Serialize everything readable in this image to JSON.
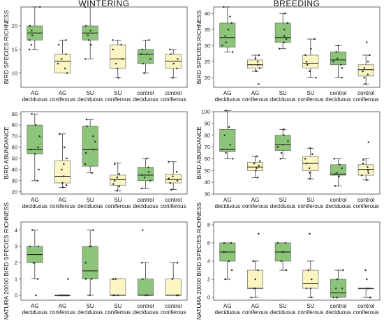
{
  "colors": {
    "green": "#8cc47a",
    "yellow": "#fbf5c1"
  },
  "chart_data": [
    {
      "type": "box",
      "title": "WINTERING",
      "ylabel": "BIRD SPECIES RICHNESS",
      "ylim": [
        7,
        24
      ],
      "yticks": [
        10,
        15,
        20
      ],
      "categories": [
        "AG deciduous",
        "AG coniferous",
        "SU deciduous",
        "SU coniferous",
        "control deciduous",
        "control coniferous"
      ],
      "boxes": [
        {
          "min": 15,
          "q1": 17,
          "median": 18.5,
          "q3": 20,
          "max": 24,
          "color": "green"
        },
        {
          "min": 10,
          "q1": 10,
          "median": 12.5,
          "q3": 14,
          "max": 17,
          "color": "yellow"
        },
        {
          "min": 13,
          "q1": 17,
          "median": 18.5,
          "q3": 20,
          "max": 24,
          "color": "green"
        },
        {
          "min": 9,
          "q1": 11,
          "median": 13,
          "q3": 16,
          "max": 17,
          "color": "yellow"
        },
        {
          "min": 10,
          "q1": 12,
          "median": 14,
          "q3": 15,
          "max": 17,
          "color": "green"
        },
        {
          "min": 9,
          "q1": 11,
          "median": 12.5,
          "q3": 14,
          "max": 15,
          "color": "yellow"
        }
      ],
      "points": [
        [
          15,
          16,
          17,
          18,
          19,
          20,
          24
        ],
        [
          10,
          11,
          12,
          13,
          14,
          16,
          17
        ],
        [
          13,
          16,
          17,
          18,
          19,
          20,
          24
        ],
        [
          9,
          11,
          12,
          13,
          15,
          16,
          17
        ],
        [
          10,
          12,
          13,
          14,
          14,
          15,
          17
        ],
        [
          9,
          11,
          12,
          13,
          14,
          15
        ]
      ]
    },
    {
      "type": "box",
      "title": "BREEDING",
      "ylabel": "BIRD SPECIES RICHNESS",
      "ylim": [
        17,
        42
      ],
      "yticks": [
        20,
        25,
        30,
        35,
        40
      ],
      "categories": [
        "AG deciduous",
        "AG coniferous",
        "SU deciduous",
        "SU coniferous",
        "control deciduous",
        "control coniferous"
      ],
      "boxes": [
        {
          "min": 28,
          "q1": 29.5,
          "median": 32.5,
          "q3": 37,
          "max": 42,
          "color": "green"
        },
        {
          "min": 22,
          "q1": 23,
          "median": 24,
          "q3": 25.5,
          "max": 27,
          "color": "yellow"
        },
        {
          "min": 29,
          "q1": 31,
          "median": 32.5,
          "q3": 37,
          "max": 40,
          "color": "green"
        },
        {
          "min": 20,
          "q1": 23,
          "median": 24.5,
          "q3": 27,
          "max": 32,
          "color": "yellow"
        },
        {
          "min": 20,
          "q1": 24,
          "median": 25.5,
          "q3": 28,
          "max": 30,
          "color": "green"
        },
        {
          "min": 18,
          "q1": 20.5,
          "median": 22.5,
          "q3": 24,
          "max": 27,
          "color": "yellow"
        }
      ],
      "points": [
        [
          28,
          30,
          31,
          33,
          35,
          37,
          39,
          42
        ],
        [
          18,
          22,
          23,
          24,
          25,
          26,
          27
        ],
        [
          29,
          31,
          32,
          33,
          35,
          37,
          40
        ],
        [
          20,
          22,
          24,
          25,
          27,
          29,
          32
        ],
        [
          20,
          23,
          24,
          25,
          26,
          28,
          30
        ],
        [
          18,
          20,
          21,
          22,
          23,
          25,
          27,
          31
        ]
      ]
    },
    {
      "type": "box",
      "title": "",
      "ylabel": "BIRD ABUNDANCE",
      "ylim": [
        18,
        92
      ],
      "yticks": [
        20,
        30,
        40,
        50,
        60,
        70,
        80,
        90
      ],
      "categories": [
        "AG deciduous",
        "AG coniferous",
        "SU deciduous",
        "SU coniferous",
        "control deciduous",
        "control coniferous"
      ],
      "boxes": [
        {
          "min": 30,
          "q1": 54,
          "median": 58,
          "q3": 80,
          "max": 90,
          "color": "green"
        },
        {
          "min": 24,
          "q1": 28,
          "median": 34,
          "q3": 48,
          "max": 72,
          "color": "yellow"
        },
        {
          "min": 37,
          "q1": 43,
          "median": 58,
          "q3": 79,
          "max": 85,
          "color": "green"
        },
        {
          "min": 21,
          "q1": 26,
          "median": 31,
          "q3": 35,
          "max": 46,
          "color": "yellow"
        },
        {
          "min": 23,
          "q1": 30,
          "median": 35,
          "q3": 42,
          "max": 50,
          "color": "green"
        },
        {
          "min": 22,
          "q1": 28,
          "median": 31,
          "q3": 36,
          "max": 47,
          "color": "yellow"
        }
      ],
      "points": [
        [
          30,
          40,
          54,
          58,
          60,
          70,
          80,
          90
        ],
        [
          24,
          26,
          28,
          34,
          40,
          45,
          50,
          60,
          72
        ],
        [
          37,
          45,
          55,
          58,
          65,
          70,
          79,
          85
        ],
        [
          21,
          25,
          27,
          30,
          33,
          36,
          45
        ],
        [
          23,
          30,
          33,
          35,
          38,
          42,
          50
        ],
        [
          22,
          28,
          30,
          32,
          34,
          38,
          47
        ]
      ]
    },
    {
      "type": "box",
      "title": "",
      "ylabel": "BIRD ABUNDANCE",
      "ylim": [
        30,
        100
      ],
      "yticks": [
        30,
        40,
        50,
        60,
        70,
        80,
        90,
        100
      ],
      "categories": [
        "AG deciduous",
        "AG coniferous",
        "SU deciduous",
        "SU coniferous",
        "control deciduous",
        "control coniferous"
      ],
      "boxes": [
        {
          "min": 60,
          "q1": 66,
          "median": 68,
          "q3": 85,
          "max": 101,
          "color": "green"
        },
        {
          "min": 44,
          "q1": 50,
          "median": 53,
          "q3": 57,
          "max": 62,
          "color": "yellow"
        },
        {
          "min": 60,
          "q1": 67,
          "median": 72,
          "q3": 80,
          "max": 85,
          "color": "green"
        },
        {
          "min": 43,
          "q1": 50,
          "median": 56,
          "q3": 62,
          "max": 69,
          "color": "yellow"
        },
        {
          "min": 37,
          "q1": 46,
          "median": 47,
          "q3": 55,
          "max": 60,
          "color": "green"
        },
        {
          "min": 42,
          "q1": 46,
          "median": 51,
          "q3": 55,
          "max": 60,
          "color": "yellow"
        }
      ],
      "points": [
        [
          60,
          65,
          68,
          72,
          80,
          87,
          101
        ],
        [
          44,
          50,
          52,
          54,
          56,
          58,
          62
        ],
        [
          60,
          65,
          70,
          72,
          75,
          80,
          85
        ],
        [
          43,
          48,
          52,
          56,
          60,
          64,
          69
        ],
        [
          37,
          45,
          47,
          48,
          52,
          55,
          60
        ],
        [
          42,
          46,
          48,
          50,
          53,
          56,
          59,
          74
        ]
      ]
    },
    {
      "type": "box",
      "title": "",
      "ylabel": "NATURA 20000 BIRD SPECIES RICHNESS",
      "ylim": [
        -0.3,
        4.5
      ],
      "yticks": [
        0,
        1,
        2,
        3,
        4
      ],
      "categories": [
        "AG deciduous",
        "AG coniferous",
        "SU deciduous",
        "SU coniferous",
        "control deciduous",
        "control coniferous"
      ],
      "boxes": [
        {
          "min": 1,
          "q1": 2,
          "median": 2.5,
          "q3": 3,
          "max": 4,
          "color": "green"
        },
        {
          "min": 0,
          "q1": 0,
          "median": 0,
          "q3": 0,
          "max": 0,
          "color": "yellow"
        },
        {
          "min": 0,
          "q1": 1,
          "median": 1.5,
          "q3": 3,
          "max": 4,
          "color": "green"
        },
        {
          "min": 0,
          "q1": 0,
          "median": 0,
          "q3": 1,
          "max": 1,
          "color": "yellow"
        },
        {
          "min": 0,
          "q1": 0,
          "median": 0,
          "q3": 1,
          "max": 2,
          "color": "green"
        },
        {
          "min": 0,
          "q1": 0,
          "median": 0,
          "q3": 1,
          "max": 2,
          "color": "yellow"
        }
      ],
      "points": [
        [
          0,
          1,
          2,
          2,
          3,
          3,
          4
        ],
        [
          0,
          0,
          0,
          0,
          0,
          0,
          0,
          0,
          1
        ],
        [
          0,
          1,
          1,
          2,
          3,
          3,
          4
        ],
        [
          0,
          0,
          0,
          1,
          1,
          1
        ],
        [
          0,
          0,
          0,
          1,
          2,
          4
        ],
        [
          0,
          0,
          0,
          1,
          2
        ]
      ]
    },
    {
      "type": "box",
      "title": "",
      "ylabel": "NATURA 20000 BIRD SPECIES RICHNESS",
      "ylim": [
        -0.3,
        8.3
      ],
      "yticks": [
        0,
        2,
        4,
        6,
        8
      ],
      "categories": [
        "AG deciduous",
        "AG coniferous",
        "SU deciduous",
        "SU coniferous",
        "control deciduous",
        "control coniferous"
      ],
      "boxes": [
        {
          "min": 2,
          "q1": 4,
          "median": 5,
          "q3": 6,
          "max": 6,
          "color": "green"
        },
        {
          "min": 0,
          "q1": 1,
          "median": 1,
          "q3": 3,
          "max": 4,
          "color": "yellow"
        },
        {
          "min": 3,
          "q1": 4,
          "median": 5,
          "q3": 6,
          "max": 6,
          "color": "green"
        },
        {
          "min": 0,
          "q1": 1,
          "median": 1.5,
          "q3": 3,
          "max": 4,
          "color": "yellow"
        },
        {
          "min": 0,
          "q1": 0,
          "median": 0.5,
          "q3": 2,
          "max": 3,
          "color": "green"
        },
        {
          "min": 0,
          "q1": 1,
          "median": 1,
          "q3": 1,
          "max": 1,
          "color": "yellow"
        }
      ],
      "points": [
        [
          2,
          3,
          4,
          5,
          5,
          6,
          6
        ],
        [
          0,
          1,
          1,
          2,
          3,
          4,
          7
        ],
        [
          3,
          4,
          5,
          5,
          6,
          6
        ],
        [
          0,
          1,
          1,
          2,
          3,
          7
        ],
        [
          0,
          0,
          0,
          1,
          1,
          2,
          3
        ],
        [
          0,
          0,
          1,
          1,
          2,
          3
        ]
      ]
    }
  ]
}
